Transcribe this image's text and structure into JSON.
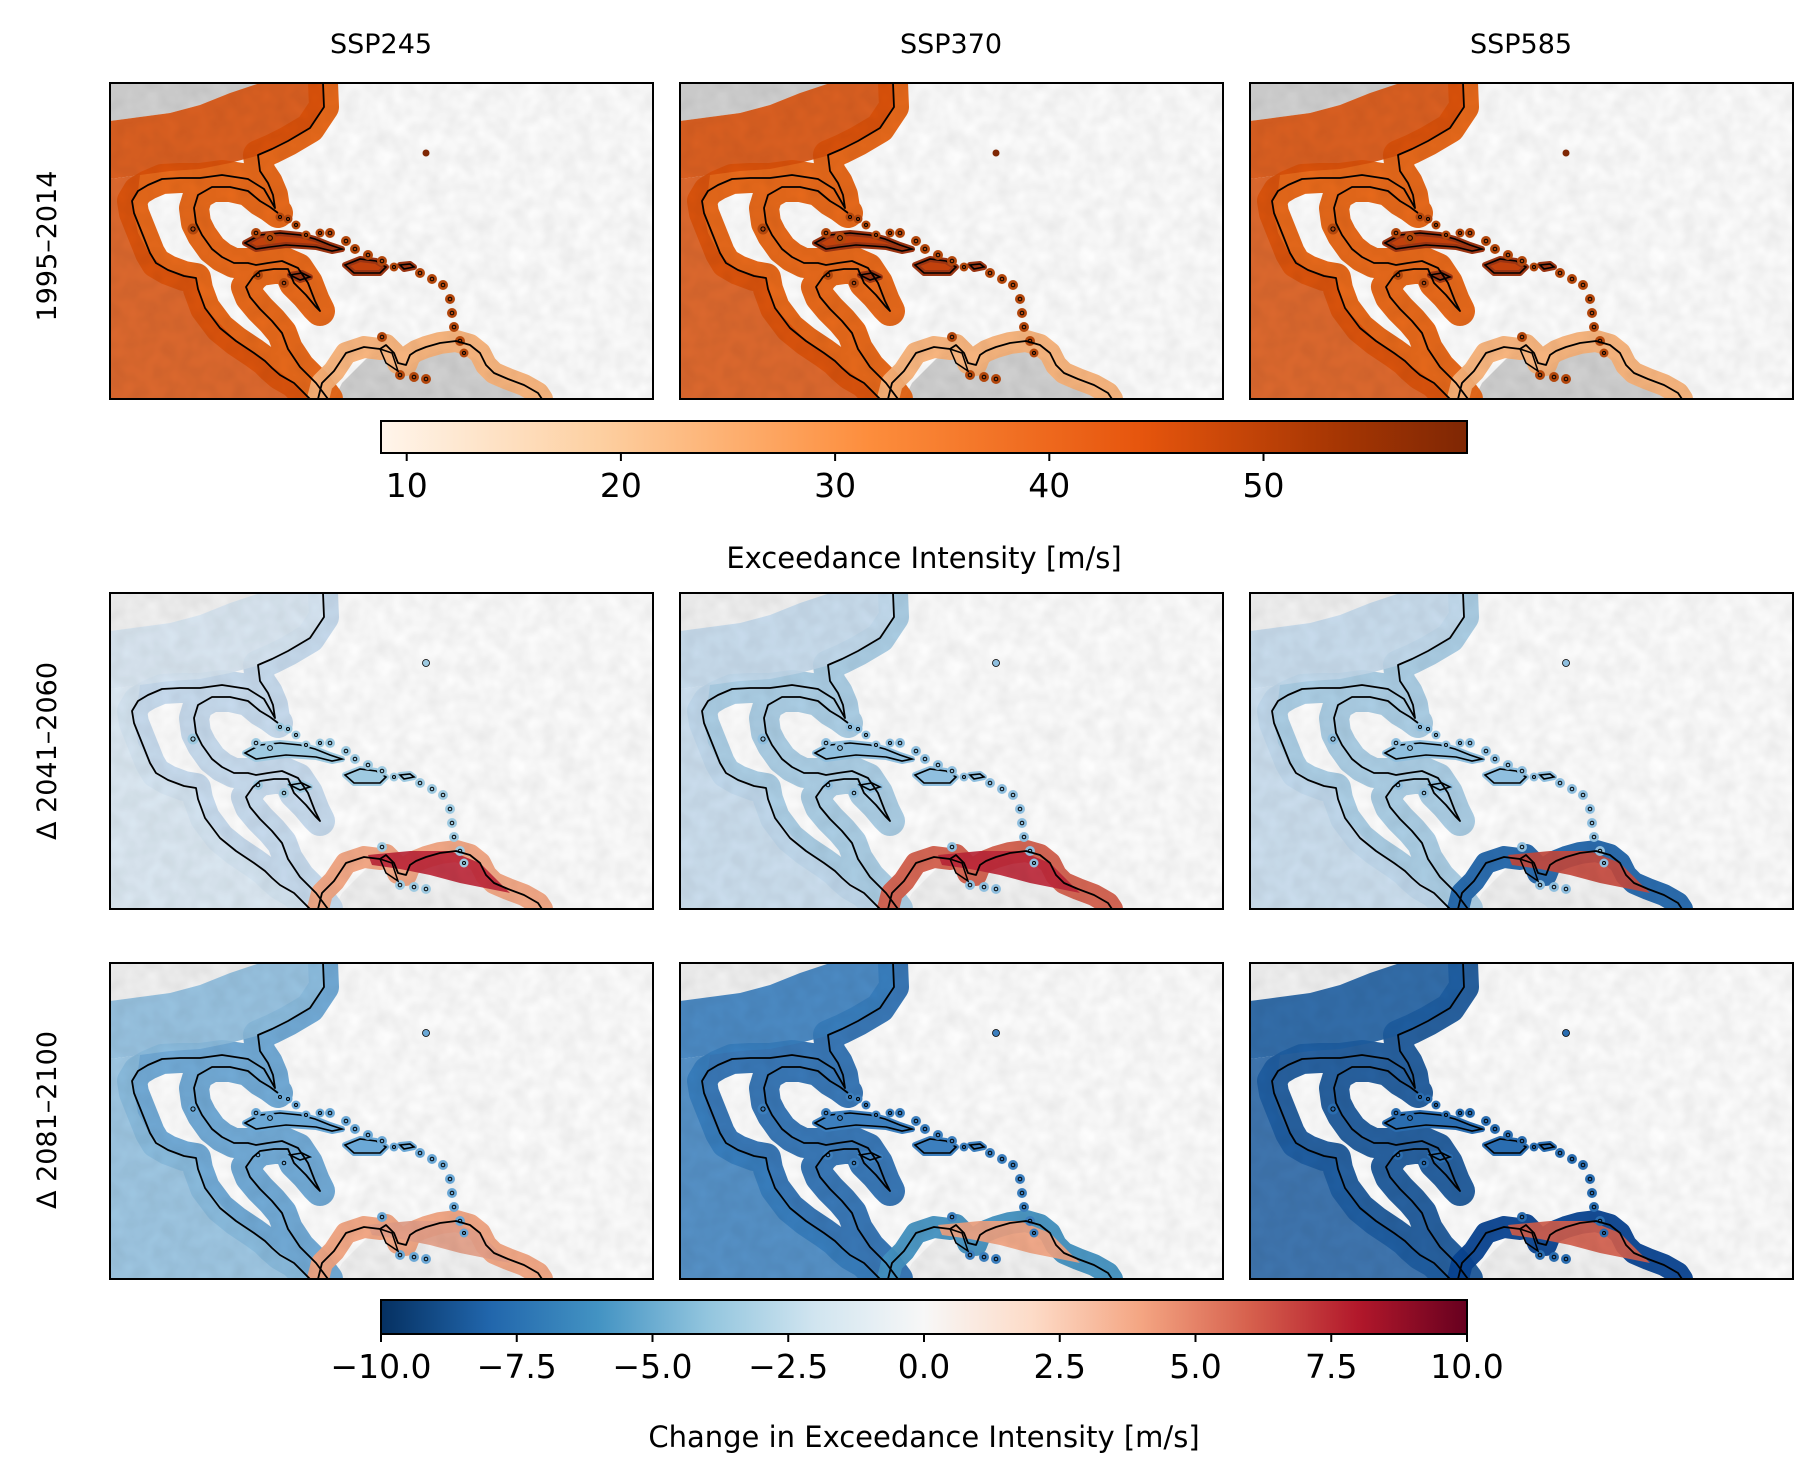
{
  "columns": [
    "SSP245",
    "SSP370",
    "SSP585"
  ],
  "rows": [
    "1995–2014",
    "Δ 2041–2060",
    "Δ 2081–2100"
  ],
  "colorbar_top": {
    "label": "Exceedance Intensity [m/s]",
    "ticks": [
      "10",
      "20",
      "30",
      "40",
      "50"
    ],
    "tick_values": [
      10,
      20,
      30,
      40,
      50
    ],
    "range": [
      8.8,
      59.5
    ],
    "colormap": "Oranges",
    "colors": [
      "#fff5eb",
      "#fdd0a2",
      "#fd8d3c",
      "#e6550d",
      "#a63603",
      "#7f2704"
    ]
  },
  "colorbar_bottom": {
    "label": "Change in Exceedance Intensity [m/s]",
    "ticks": [
      "−10.0",
      "−7.5",
      "−5.0",
      "−2.5",
      "0.0",
      "2.5",
      "5.0",
      "7.5",
      "10.0"
    ],
    "tick_values": [
      -10,
      -7.5,
      -5,
      -2.5,
      0,
      2.5,
      5,
      7.5,
      10
    ],
    "range": [
      -10,
      10
    ],
    "colormap": "RdBu_r",
    "colors": [
      "#053061",
      "#2166ac",
      "#4393c3",
      "#92c5de",
      "#d1e5f0",
      "#f7f7f7",
      "#fddbc7",
      "#f4a582",
      "#d6604d",
      "#b2182b",
      "#67001f"
    ]
  },
  "land_color": "#d3d3d3",
  "coast_color": "#000000"
}
